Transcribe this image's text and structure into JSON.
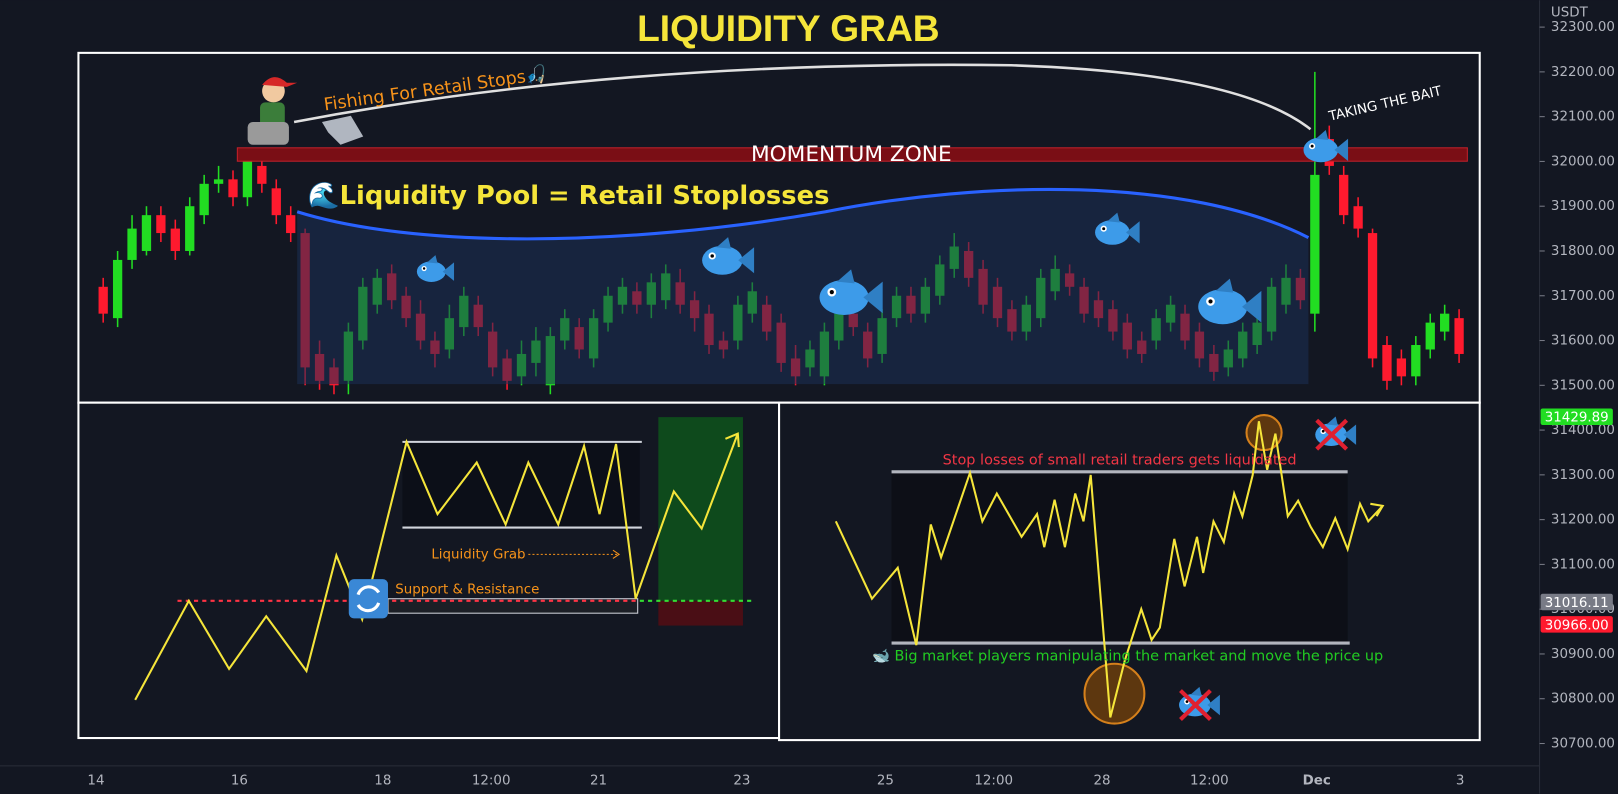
{
  "chart_data": {
    "type": "candlestick",
    "title": "LIQUIDITY GRAB",
    "currency": "USDT",
    "up_color": "#22dd22",
    "down_color": "#ff1a2e",
    "open": [
      31720,
      31650,
      31780,
      31800,
      31880,
      31850,
      31800,
      31880,
      31950,
      31960,
      31920,
      31990,
      31940,
      31880,
      31840,
      31570,
      31540,
      31510,
      31600,
      31680,
      31750,
      31700,
      31660,
      31600,
      31580,
      31630,
      31680,
      31620,
      31560,
      31520,
      31550,
      31500,
      31600,
      31630,
      31560,
      31640,
      31680,
      31710,
      31680,
      31690,
      31730,
      31690,
      31660,
      31600,
      31600,
      31660,
      31680,
      31640,
      31560,
      31540,
      31520,
      31600,
      31660,
      31620,
      31570,
      31650,
      31700,
      31660,
      31700,
      31760,
      31800,
      31760,
      31720,
      31670,
      31620,
      31650,
      31710,
      31750,
      31720,
      31690,
      31670,
      31640,
      31600,
      31600,
      31640,
      31660,
      31620,
      31570,
      31540,
      31560,
      31590,
      31620,
      31680,
      31740,
      31660,
      32050,
      31970,
      31900,
      31840,
      31590,
      31560,
      31520,
      31580,
      31620,
      31650
    ],
    "high": [
      31740,
      31800,
      31880,
      31900,
      31900,
      31870,
      31920,
      31970,
      31990,
      31980,
      32030,
      32010,
      31960,
      31900,
      31850,
      31600,
      31560,
      31640,
      31740,
      31760,
      31770,
      31720,
      31690,
      31620,
      31680,
      31720,
      31700,
      31640,
      31580,
      31600,
      31630,
      31630,
      31670,
      31650,
      31670,
      31720,
      31740,
      31730,
      31750,
      31770,
      31760,
      31710,
      31680,
      31620,
      31700,
      31730,
      31700,
      31660,
      31590,
      31600,
      31640,
      31680,
      31690,
      31640,
      31670,
      31720,
      31720,
      31740,
      31790,
      31840,
      31820,
      31780,
      31740,
      31690,
      31700,
      31760,
      31790,
      31770,
      31740,
      31710,
      31690,
      31660,
      31620,
      31670,
      31700,
      31680,
      31640,
      31590,
      31600,
      31640,
      31660,
      31740,
      31770,
      31760,
      32200,
      32080,
      31990,
      31920,
      31850,
      31610,
      31580,
      31610,
      31660,
      31680,
      31670
    ],
    "low": [
      31640,
      31630,
      31760,
      31790,
      31820,
      31780,
      31790,
      31860,
      31930,
      31900,
      31900,
      31930,
      31860,
      31820,
      31500,
      31490,
      31480,
      31480,
      31580,
      31660,
      31670,
      31630,
      31580,
      31540,
      31560,
      31610,
      31610,
      31520,
      31490,
      31500,
      31520,
      31480,
      31580,
      31560,
      31540,
      31620,
      31660,
      31660,
      31650,
      31670,
      31660,
      31620,
      31570,
      31560,
      31580,
      31640,
      31600,
      31530,
      31500,
      31520,
      31500,
      31580,
      31610,
      31540,
      31550,
      31630,
      31640,
      31640,
      31680,
      31740,
      31720,
      31660,
      31630,
      31600,
      31600,
      31630,
      31690,
      31700,
      31640,
      31630,
      31600,
      31560,
      31550,
      31580,
      31620,
      31580,
      31540,
      31510,
      31520,
      31540,
      31570,
      31600,
      31660,
      31670,
      31620,
      31970,
      31860,
      31830,
      31540,
      31490,
      31500,
      31500,
      31560,
      31600,
      31550
    ],
    "close": [
      31660,
      31780,
      31850,
      31880,
      31840,
      31800,
      31900,
      31950,
      31960,
      31920,
      32000,
      31950,
      31880,
      31840,
      31540,
      31510,
      31500,
      31620,
      31720,
      31740,
      31690,
      31650,
      31600,
      31570,
      31650,
      31700,
      31630,
      31540,
      31510,
      31570,
      31600,
      31610,
      31650,
      31580,
      31650,
      31700,
      31720,
      31680,
      31730,
      31750,
      31680,
      31650,
      31590,
      31580,
      31680,
      31710,
      31620,
      31550,
      31520,
      31580,
      31620,
      31660,
      31630,
      31560,
      31650,
      31700,
      31660,
      31720,
      31770,
      31810,
      31740,
      31680,
      31650,
      31620,
      31680,
      31740,
      31760,
      31720,
      31660,
      31650,
      31620,
      31580,
      31570,
      31650,
      31680,
      31600,
      31560,
      31530,
      31580,
      31620,
      31640,
      31720,
      31740,
      31690,
      31970,
      31990,
      31880,
      31850,
      31560,
      31510,
      31520,
      31590,
      31640,
      31660,
      31570
    ],
    "xticks": [
      "14",
      "16",
      "18",
      "12:00",
      "21",
      "23",
      "25",
      "12:00",
      "28",
      "12:00",
      "Dec",
      "3"
    ],
    "ylim": [
      30650,
      32360
    ],
    "yticks": [
      {
        "value": 32300,
        "label": "32300.00"
      },
      {
        "value": 32200,
        "label": "32200.00"
      },
      {
        "value": 32100,
        "label": "32100.00"
      },
      {
        "value": 32000,
        "label": "32000.00"
      },
      {
        "value": 31900,
        "label": "31900.00"
      },
      {
        "value": 31800,
        "label": "31800.00"
      },
      {
        "value": 31700,
        "label": "31700.00"
      },
      {
        "value": 31600,
        "label": "31600.00"
      },
      {
        "value": 31500,
        "label": "31500.00"
      },
      {
        "value": 31400,
        "label": "31400.00"
      },
      {
        "value": 31300,
        "label": "31300.00"
      },
      {
        "value": 31200,
        "label": "31200.00"
      },
      {
        "value": 31100,
        "label": "31100.00"
      },
      {
        "value": 31000,
        "label": "31000.00"
      },
      {
        "value": 30900,
        "label": "30900.00"
      },
      {
        "value": 30800,
        "label": "30800.00"
      },
      {
        "value": 30700,
        "label": "30700.00"
      }
    ],
    "price_labels": [
      {
        "value": 31429.89,
        "label": "31429.89",
        "color": "#22dd22"
      },
      {
        "value": 31016.11,
        "label": "31016.11",
        "color": "#787b86"
      },
      {
        "value": 30966.0,
        "label": "30966.00",
        "color": "#ff1a2e"
      }
    ],
    "annotations": {
      "fishing": "Fishing For Retail Stops🎣",
      "bait": "TAKING THE BAIT",
      "momentum": "MOMENTUM ZONE",
      "pool": "🌊Liquidity Pool = Retail Stoplosses",
      "grab": "Liquidity Grab",
      "support": "Support & Resistance",
      "stops": "Stop losses of small retail traders gets liquidated",
      "whales": "🐋 Big market players manipulating the market and move the price up"
    }
  }
}
